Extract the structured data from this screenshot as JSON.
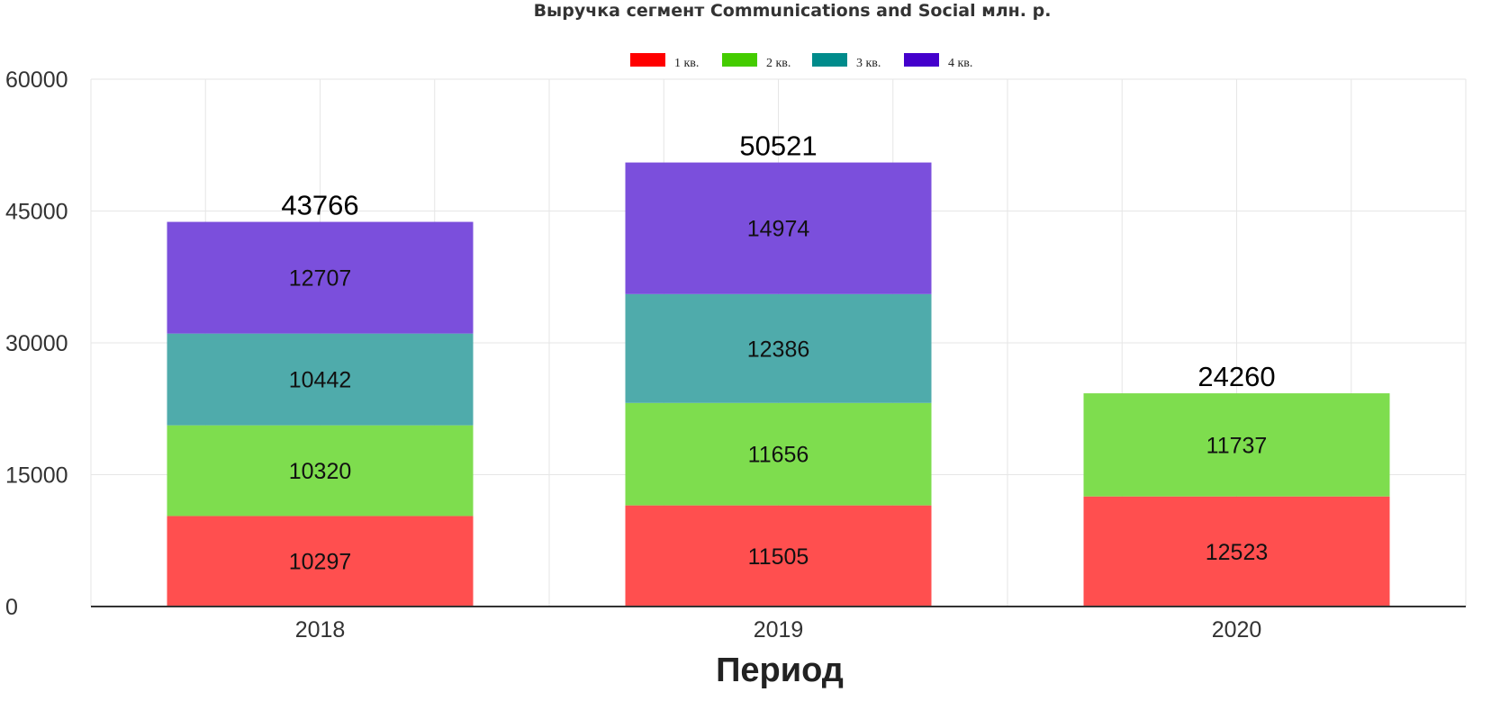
{
  "chart_data": {
    "type": "bar",
    "stacked": true,
    "title": "Выручка сегмент Communications and Social млн. р.",
    "xlabel": "Период",
    "ylabel": "",
    "ylim": [
      0,
      60000
    ],
    "yticks": [
      0,
      15000,
      30000,
      45000,
      60000
    ],
    "categories": [
      "2018",
      "2019",
      "2020"
    ],
    "legend_position": "top-center",
    "grid": true,
    "series": [
      {
        "name": "1 кв.",
        "legend_color": "#ff0000",
        "color": "#ff4f4f",
        "values": [
          10297,
          11505,
          12523
        ]
      },
      {
        "name": "2 кв.",
        "legend_color": "#44cc00",
        "color": "#7edd4e",
        "values": [
          10320,
          11656,
          11737
        ]
      },
      {
        "name": "3 кв.",
        "legend_color": "#008b8b",
        "color": "#4fabab",
        "values": [
          10442,
          12386,
          null
        ]
      },
      {
        "name": "4 кв.",
        "legend_color": "#4400cc",
        "color": "#7b4fdc",
        "values": [
          12707,
          14974,
          null
        ]
      }
    ],
    "totals": [
      43766,
      50521,
      24260
    ]
  }
}
